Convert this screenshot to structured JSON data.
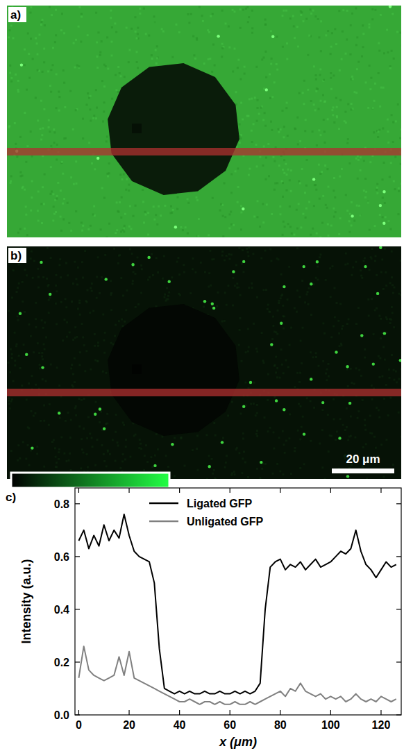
{
  "images": [
    {
      "panel_label": "a)"
    },
    {
      "panel_label": "b)",
      "scale_bar": "20 μm"
    }
  ],
  "chart_data": {
    "type": "line",
    "panel_label": "c)",
    "x_label": "x (μm)",
    "y_label": "Intensity (a.u.)",
    "x": [
      0,
      2,
      4,
      6,
      8,
      10,
      12,
      14,
      16,
      18,
      20,
      22,
      24,
      26,
      28,
      30,
      32,
      34,
      36,
      38,
      40,
      42,
      44,
      46,
      48,
      50,
      52,
      54,
      56,
      58,
      60,
      62,
      64,
      66,
      68,
      70,
      72,
      74,
      76,
      78,
      80,
      82,
      84,
      86,
      88,
      90,
      92,
      94,
      96,
      98,
      100,
      102,
      104,
      106,
      108,
      110,
      112,
      114,
      116,
      118,
      120,
      122,
      124,
      126
    ],
    "series": [
      {
        "name": "Ligated GFP",
        "color": "#000000",
        "values": [
          0.66,
          0.7,
          0.63,
          0.68,
          0.64,
          0.72,
          0.66,
          0.7,
          0.67,
          0.76,
          0.68,
          0.62,
          0.6,
          0.59,
          0.58,
          0.5,
          0.25,
          0.1,
          0.09,
          0.08,
          0.09,
          0.08,
          0.09,
          0.08,
          0.08,
          0.09,
          0.08,
          0.08,
          0.09,
          0.08,
          0.08,
          0.09,
          0.08,
          0.09,
          0.08,
          0.09,
          0.12,
          0.4,
          0.56,
          0.58,
          0.59,
          0.55,
          0.57,
          0.56,
          0.58,
          0.55,
          0.57,
          0.59,
          0.56,
          0.57,
          0.58,
          0.6,
          0.62,
          0.61,
          0.63,
          0.7,
          0.62,
          0.57,
          0.55,
          0.52,
          0.55,
          0.58,
          0.56,
          0.57
        ]
      },
      {
        "name": "Unligated GFP",
        "color": "#808080",
        "values": [
          0.14,
          0.26,
          0.17,
          0.15,
          0.14,
          0.13,
          0.14,
          0.15,
          0.22,
          0.15,
          0.24,
          0.14,
          0.13,
          0.12,
          0.11,
          0.1,
          0.09,
          0.08,
          0.07,
          0.06,
          0.05,
          0.05,
          0.06,
          0.05,
          0.04,
          0.05,
          0.05,
          0.04,
          0.05,
          0.04,
          0.04,
          0.05,
          0.04,
          0.04,
          0.05,
          0.04,
          0.05,
          0.06,
          0.07,
          0.08,
          0.09,
          0.07,
          0.1,
          0.09,
          0.12,
          0.09,
          0.08,
          0.07,
          0.08,
          0.06,
          0.07,
          0.06,
          0.07,
          0.05,
          0.06,
          0.08,
          0.06,
          0.05,
          0.06,
          0.05,
          0.07,
          0.06,
          0.05,
          0.06
        ]
      }
    ],
    "xlim": [
      -1.5,
      128
    ],
    "ylim": [
      0,
      0.86
    ],
    "xticks": [
      0,
      20,
      40,
      60,
      80,
      100,
      120
    ],
    "yticks": [
      {
        "value": 0,
        "label": "0.0"
      },
      {
        "value": 0.2,
        "label": "0.2"
      },
      {
        "value": 0.4,
        "label": "0.4"
      },
      {
        "value": 0.6,
        "label": "0.6"
      },
      {
        "value": 0.8,
        "label": "0.8"
      }
    ],
    "legend": "top",
    "grid": false
  }
}
